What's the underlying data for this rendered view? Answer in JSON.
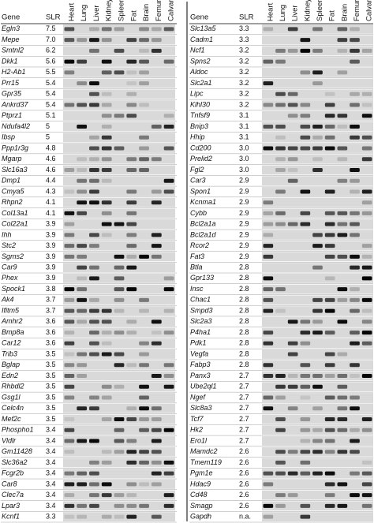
{
  "panels": [
    {
      "header": {
        "gene": "Gene",
        "slr": "SLR",
        "tissues": [
          "Heart",
          "Lung",
          "Liver",
          "Kidney",
          "Spleen",
          "Fat",
          "Brain",
          "Femur",
          "Calvaria"
        ]
      },
      "rows": [
        {
          "gene": "Egln3",
          "slr": "7.5"
        },
        {
          "gene": "Mepe",
          "slr": "7.0"
        },
        {
          "gene": "Smtnl2",
          "slr": "6.2"
        },
        {
          "gene": "Dkk1",
          "slr": "5.6"
        },
        {
          "gene": "H2-Ab1",
          "slr": "5.5"
        },
        {
          "gene": "Prr15",
          "slr": "5.4"
        },
        {
          "gene": "Gpr35",
          "slr": "5.4"
        },
        {
          "gene": "Ankrd37",
          "slr": "5.4"
        },
        {
          "gene": "Ptprz1",
          "slr": "5.1"
        },
        {
          "gene": "Ndufa4l2",
          "slr": "5"
        },
        {
          "gene": "Ibsp",
          "slr": "5"
        },
        {
          "gene": "Ppp1r3g",
          "slr": "4.8"
        },
        {
          "gene": "Mgarp",
          "slr": "4.6"
        },
        {
          "gene": "Slc16a3",
          "slr": "4.6"
        },
        {
          "gene": "Dmp1",
          "slr": "4.4"
        },
        {
          "gene": "Cmya5",
          "slr": "4.3"
        },
        {
          "gene": "Rhpn2",
          "slr": "4.1"
        },
        {
          "gene": "Col13a1",
          "slr": "4.1"
        },
        {
          "gene": "Col22a1",
          "slr": "3.9"
        },
        {
          "gene": "Ihh",
          "slr": "3.9"
        },
        {
          "gene": "Stc2",
          "slr": "3.9"
        },
        {
          "gene": "Sgms2",
          "slr": "3.9"
        },
        {
          "gene": "Car9",
          "slr": "3.9"
        },
        {
          "gene": "Phex",
          "slr": "3.9"
        },
        {
          "gene": "Spock1",
          "slr": "3.8"
        },
        {
          "gene": "Ak4",
          "slr": "3.7"
        },
        {
          "gene": "Ifitm5",
          "slr": "3.7"
        },
        {
          "gene": "Amhr2",
          "slr": "3.6"
        },
        {
          "gene": "Bmp8a",
          "slr": "3.6"
        },
        {
          "gene": "Car12",
          "slr": "3.6"
        },
        {
          "gene": "Trib3",
          "slr": "3.5"
        },
        {
          "gene": "Bglap",
          "slr": "3.5"
        },
        {
          "gene": "Edn2",
          "slr": "3.5"
        },
        {
          "gene": "Rhbdl2",
          "slr": "3.5"
        },
        {
          "gene": "Gsg1l",
          "slr": "3.5"
        },
        {
          "gene": "Celc4n",
          "slr": "3.5"
        },
        {
          "gene": "Mef2c",
          "slr": "3.5"
        },
        {
          "gene": "Phospho1",
          "slr": "3.4"
        },
        {
          "gene": "Vldlr",
          "slr": "3.4"
        },
        {
          "gene": "Gm11428",
          "slr": "3.4"
        },
        {
          "gene": "Slc36a2",
          "slr": "3.4"
        },
        {
          "gene": "Fcgr2b",
          "slr": "3.4"
        },
        {
          "gene": "Car8",
          "slr": "3.4"
        },
        {
          "gene": "Clec7a",
          "slr": "3.4"
        },
        {
          "gene": "Lpar3",
          "slr": "3.4"
        },
        {
          "gene": "Kcnf1",
          "slr": "3.3"
        }
      ]
    },
    {
      "header": {
        "gene": "Gene",
        "slr": "SLR",
        "tissues": [
          "Heart",
          "Lung",
          "Liver",
          "Kidney",
          "Spleen",
          "Fat",
          "Brain",
          "Femur",
          "Calvaria"
        ]
      },
      "rows": [
        {
          "gene": "Slc13a5",
          "slr": "3.3"
        },
        {
          "gene": "Cadm1",
          "slr": "3.3"
        },
        {
          "gene": "Ncf1",
          "slr": "3.2"
        },
        {
          "gene": "Spns2",
          "slr": "3.2"
        },
        {
          "gene": "Aldoc",
          "slr": "3.2"
        },
        {
          "gene": "Slc2a1",
          "slr": "3.2"
        },
        {
          "gene": "Lipc",
          "slr": "3.2"
        },
        {
          "gene": "Klhl30",
          "slr": "3.2"
        },
        {
          "gene": "Tnfsf9",
          "slr": "3.1"
        },
        {
          "gene": "Bnip3",
          "slr": "3.1"
        },
        {
          "gene": "Hhip",
          "slr": "3.1"
        },
        {
          "gene": "Cd200",
          "slr": "3.0"
        },
        {
          "gene": "Prelid2",
          "slr": "3.0"
        },
        {
          "gene": "Fgl2",
          "slr": "3.0"
        },
        {
          "gene": "Car3",
          "slr": "2.9"
        },
        {
          "gene": "Spon1",
          "slr": "2.9"
        },
        {
          "gene": "Kcnma1",
          "slr": "2.9"
        },
        {
          "gene": "Cybb",
          "slr": "2.9"
        },
        {
          "gene": "Bcl2a1a",
          "slr": "2.9"
        },
        {
          "gene": "Bcl2a1d",
          "slr": "2.9"
        },
        {
          "gene": "Rcor2",
          "slr": "2.9"
        },
        {
          "gene": "Fat3",
          "slr": "2.9"
        },
        {
          "gene": "Btla",
          "slr": "2.8"
        },
        {
          "gene": "Gpr133",
          "slr": "2.8"
        },
        {
          "gene": "Insc",
          "slr": "2.8"
        },
        {
          "gene": "Chac1",
          "slr": "2.8"
        },
        {
          "gene": "Smpd3",
          "slr": "2.8"
        },
        {
          "gene": "Slc2a3",
          "slr": "2.8"
        },
        {
          "gene": "P4ha1",
          "slr": "2.8"
        },
        {
          "gene": "Pdk1",
          "slr": "2.8"
        },
        {
          "gene": "Vegfa",
          "slr": "2.8"
        },
        {
          "gene": "Fabp3",
          "slr": "2.8"
        },
        {
          "gene": "Panx3",
          "slr": "2.7"
        },
        {
          "gene": "Ube2ql1",
          "slr": "2.7"
        },
        {
          "gene": "Ngef",
          "slr": "2.7"
        },
        {
          "gene": "Slc8a3",
          "slr": "2.7"
        },
        {
          "gene": "Tcf7",
          "slr": "2.7"
        },
        {
          "gene": "Hk2",
          "slr": "2.7"
        },
        {
          "gene": "Ero1l",
          "slr": "2.7"
        },
        {
          "gene": "Mamdc2",
          "slr": "2.6"
        },
        {
          "gene": "Tmem119",
          "slr": "2.6"
        },
        {
          "gene": "Pgm1e",
          "slr": "2.6"
        },
        {
          "gene": "Hdac9",
          "slr": "2.6"
        },
        {
          "gene": "Cd48",
          "slr": "2.6"
        },
        {
          "gene": "Smagp",
          "slr": "2.6"
        },
        {
          "gene": "Gapdh",
          "slr": "n.a."
        }
      ]
    }
  ]
}
